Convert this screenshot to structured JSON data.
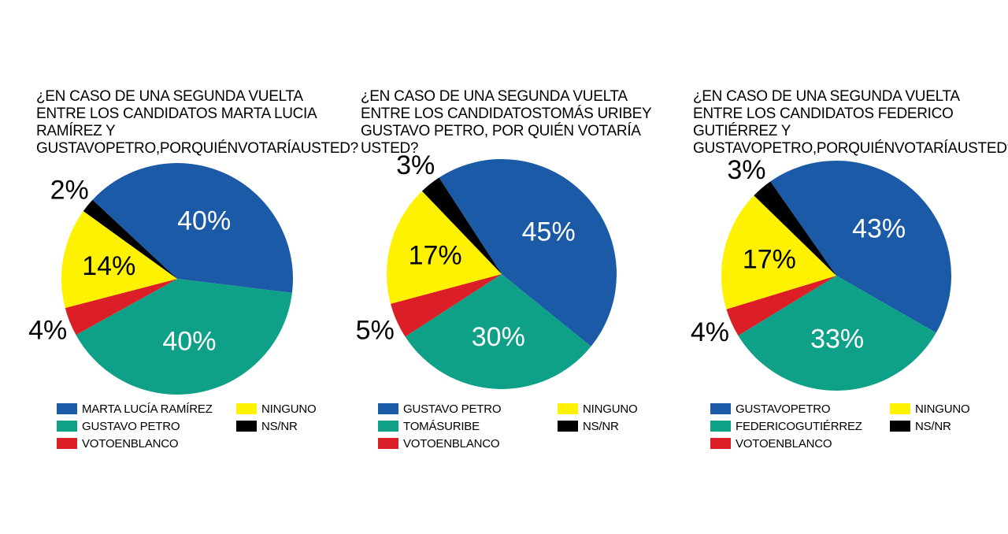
{
  "colors": {
    "blue": "#1b5aa6",
    "green": "#0fa187",
    "red": "#dc1f26",
    "yellow": "#fff200",
    "black": "#000000"
  },
  "chart_data": [
    {
      "type": "pie",
      "title": "¿EN CASO DE UNA SEGUNDA VUELTA ENTRE LOS CANDIDATOS MARTA LUCIA RAMÍREZ Y GUSTAVOPETRO,PORQUIÉNVOTARÍAUSTED?",
      "slices": [
        {
          "label": "MARTA LUCÍA RAMÍREZ",
          "value": 40,
          "display": "40%",
          "color": "#1b5aa6"
        },
        {
          "label": "GUSTAVO PETRO",
          "value": 40,
          "display": "40%",
          "color": "#0fa187"
        },
        {
          "label": "VOTOENBLANCO",
          "value": 4,
          "display": "4%",
          "color": "#dc1f26"
        },
        {
          "label": "NINGUNO",
          "value": 14,
          "display": "14%",
          "color": "#fff200"
        },
        {
          "label": "NS/NR",
          "value": 2,
          "display": "2%",
          "color": "#000000"
        }
      ]
    },
    {
      "type": "pie",
      "title": "¿EN CASO DE UNA SEGUNDA VUELTA ENTRE LOS CANDIDATOSTOMÁS URIBEY GUSTAVO PETRO, POR QUIÉN VOTARÍA USTED?",
      "slices": [
        {
          "label": "GUSTAVO PETRO",
          "value": 45,
          "display": "45%",
          "color": "#1b5aa6"
        },
        {
          "label": "TOMÁSURIBE",
          "value": 30,
          "display": "30%",
          "color": "#0fa187"
        },
        {
          "label": "VOTOENBLANCO",
          "value": 5,
          "display": "5%",
          "color": "#dc1f26"
        },
        {
          "label": "NINGUNO",
          "value": 17,
          "display": "17%",
          "color": "#fff200"
        },
        {
          "label": "NS/NR",
          "value": 3,
          "display": "3%",
          "color": "#000000"
        }
      ]
    },
    {
      "type": "pie",
      "title": "¿EN CASO DE UNA SEGUNDA VUELTA ENTRE LOS CANDIDATOS FEDERICO GUTIÉRREZ Y GUSTAVOPETRO,PORQUIÉNVOTARÍAUSTED?",
      "slices": [
        {
          "label": "GUSTAVOPETRO",
          "value": 43,
          "display": "43%",
          "color": "#1b5aa6"
        },
        {
          "label": "FEDERICOGUTIÉRREZ",
          "value": 33,
          "display": "33%",
          "color": "#0fa187"
        },
        {
          "label": "VOTOENBLANCO",
          "value": 4,
          "display": "4%",
          "color": "#dc1f26"
        },
        {
          "label": "NINGUNO",
          "value": 17,
          "display": "17%",
          "color": "#fff200"
        },
        {
          "label": "NS/NR",
          "value": 3,
          "display": "3%",
          "color": "#000000"
        }
      ]
    }
  ]
}
